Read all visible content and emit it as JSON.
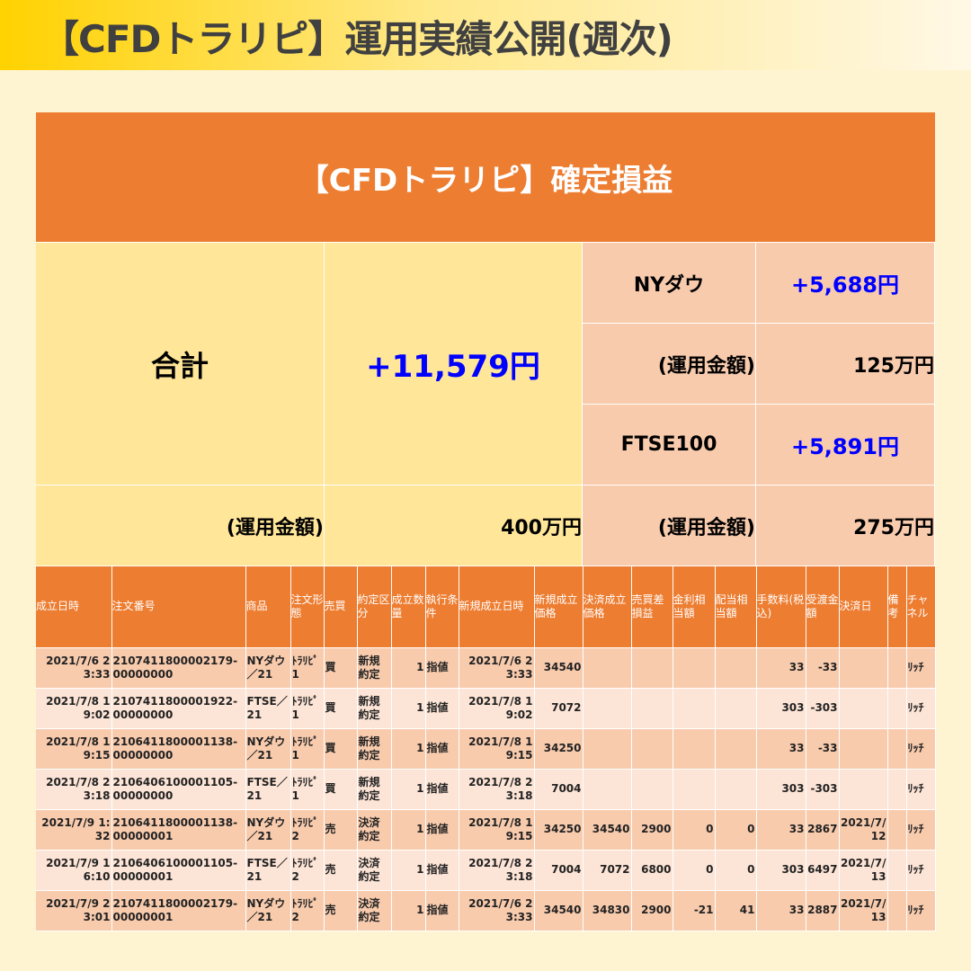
{
  "title": "【CFDトラリピ】運用実績公開(週次)",
  "summary": {
    "heading": "【CFDトラリピ】確定損益",
    "total_label": "合計",
    "total_value": "+11,579円",
    "total_capital_label": "(運用金額)",
    "total_capital": "400万円",
    "items": [
      {
        "name": "NYダウ",
        "pl": "+5,688円",
        "capital_label": "(運用金額)",
        "capital": "125万円"
      },
      {
        "name": "FTSE100",
        "pl": "+5,891円",
        "capital_label": "(運用金額)",
        "capital": "275万円"
      }
    ]
  },
  "table": {
    "headers": [
      "成立日時",
      "注文番号",
      "商品",
      "注文形態",
      "売買",
      "約定区分",
      "成立数量",
      "執行条件",
      "新規成立日時",
      "新規成立価格",
      "決済成立価格",
      "売買差損益",
      "金利相当額",
      "配当相当額",
      "手数料(税込)",
      "受渡金額",
      "決済日",
      "備考",
      "チャネル"
    ],
    "rows": [
      [
        "2021/7/6 23:33",
        "2107411800002179-00000000",
        "NYダウ／21",
        "ﾄﾗﾘﾋﾟ1",
        "買",
        "新規約定",
        "1",
        "指値",
        "2021/7/6 23:33",
        "34540",
        "",
        "",
        "",
        "",
        "33",
        "-33",
        "",
        "",
        "ﾘｯﾁ"
      ],
      [
        "2021/7/8 19:02",
        "2107411800001922-00000000",
        "FTSE／21",
        "ﾄﾗﾘﾋﾟ1",
        "買",
        "新規約定",
        "1",
        "指値",
        "2021/7/8 19:02",
        "7072",
        "",
        "",
        "",
        "",
        "303",
        "-303",
        "",
        "",
        "ﾘｯﾁ"
      ],
      [
        "2021/7/8 19:15",
        "2106411800001138-00000000",
        "NYダウ／21",
        "ﾄﾗﾘﾋﾟ1",
        "買",
        "新規約定",
        "1",
        "指値",
        "2021/7/8 19:15",
        "34250",
        "",
        "",
        "",
        "",
        "33",
        "-33",
        "",
        "",
        "ﾘｯﾁ"
      ],
      [
        "2021/7/8 23:18",
        "2106406100001105-00000000",
        "FTSE／21",
        "ﾄﾗﾘﾋﾟ1",
        "買",
        "新規約定",
        "1",
        "指値",
        "2021/7/8 23:18",
        "7004",
        "",
        "",
        "",
        "",
        "303",
        "-303",
        "",
        "",
        "ﾘｯﾁ"
      ],
      [
        "2021/7/9 1:32",
        "2106411800001138-00000001",
        "NYダウ／21",
        "ﾄﾗﾘﾋﾟ2",
        "売",
        "決済約定",
        "1",
        "指値",
        "2021/7/8 19:15",
        "34250",
        "34540",
        "2900",
        "0",
        "0",
        "33",
        "2867",
        "2021/7/12",
        "",
        "ﾘｯﾁ"
      ],
      [
        "2021/7/9 16:10",
        "2106406100001105-00000001",
        "FTSE／21",
        "ﾄﾗﾘﾋﾟ2",
        "売",
        "決済約定",
        "1",
        "指値",
        "2021/7/8 23:18",
        "7004",
        "7072",
        "6800",
        "0",
        "0",
        "303",
        "6497",
        "2021/7/13",
        "",
        "ﾘｯﾁ"
      ],
      [
        "2021/7/9 23:01",
        "2107411800002179-00000001",
        "NYダウ／21",
        "ﾄﾗﾘﾋﾟ2",
        "売",
        "決済約定",
        "1",
        "指値",
        "2021/7/6 23:33",
        "34540",
        "34830",
        "2900",
        "-21",
        "41",
        "33",
        "2887",
        "2021/7/13",
        "",
        "ﾘｯﾁ"
      ]
    ]
  },
  "colors": {
    "orange": "#ed7d31",
    "yellow": "#ffe699",
    "peach": "#f8cbad",
    "light_peach": "#fce4d6",
    "profit": "#0000ff"
  }
}
